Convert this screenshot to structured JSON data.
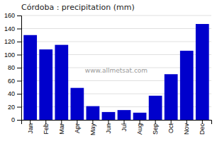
{
  "chart_data": {
    "type": "bar",
    "title": "Córdoba : precipitation (mm)",
    "categories": [
      "Jan",
      "Feb",
      "Mar",
      "Apr",
      "May",
      "Jun",
      "Jul",
      "Aug",
      "Sep",
      "Oct",
      "Nov",
      "Dec"
    ],
    "values": [
      130,
      108,
      115,
      49,
      21,
      12,
      15,
      11,
      37,
      70,
      106,
      147
    ],
    "color": "#0000cc",
    "ylim": [
      0,
      160
    ],
    "yticks": [
      0,
      20,
      40,
      60,
      80,
      100,
      120,
      140,
      160
    ],
    "grid": true,
    "annotations": [
      "www.allmetsat.com"
    ]
  }
}
